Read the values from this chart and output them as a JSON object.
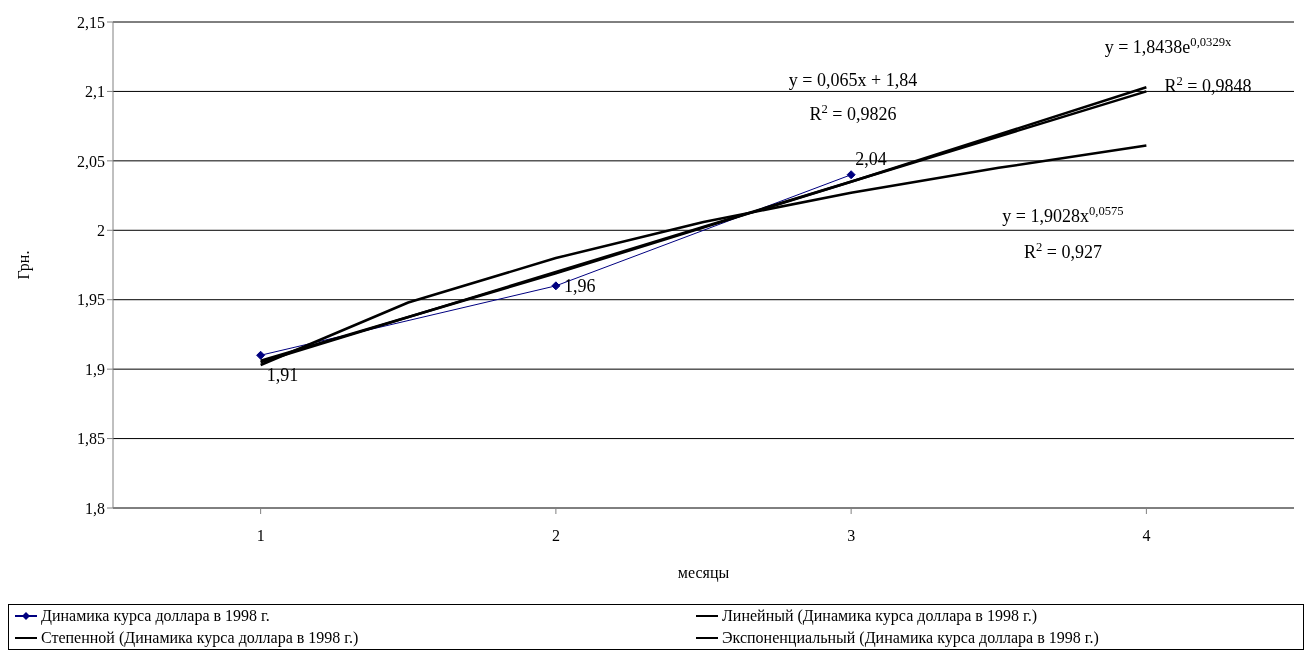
{
  "chart_data": {
    "type": "line",
    "xlabel": "месяцы",
    "ylabel": "Грн.",
    "xlim": [
      0.5,
      4.5
    ],
    "xticks": [
      1,
      2,
      3,
      4
    ],
    "ylim": [
      1.8,
      2.15
    ],
    "yticks": [
      {
        "value": 1.8,
        "label": "1,8"
      },
      {
        "value": 1.85,
        "label": "1,85"
      },
      {
        "value": 1.9,
        "label": "1,9"
      },
      {
        "value": 1.95,
        "label": "1,95"
      },
      {
        "value": 2,
        "label": "2"
      },
      {
        "value": 2.05,
        "label": "2,05"
      },
      {
        "value": 2.1,
        "label": "2,1"
      },
      {
        "value": 2.15,
        "label": "2,15"
      }
    ],
    "grid": "y",
    "legend": "bottom",
    "line_style": "solid",
    "series": [
      {
        "name": "Динамика курса доллара в 1998 г.",
        "color": "#000080",
        "marker": "diamond",
        "x": [
          1,
          2,
          3
        ],
        "values": [
          1.91,
          1.96,
          2.04
        ],
        "value_labels": [
          "1,91",
          "1,96",
          "2,04"
        ]
      },
      {
        "name": "Линейный (Динамика курса доллара в 1998 г.)",
        "color": "#000000",
        "marker": "none",
        "x": [
          1,
          4
        ],
        "values": [
          1.905,
          2.1
        ]
      },
      {
        "name": "Степенной (Динамика курса доллара в 1998 г.)",
        "color": "#000000",
        "marker": "none",
        "x": [
          1,
          1.5,
          2,
          2.5,
          3,
          3.5,
          4
        ],
        "values": [
          1.903,
          1.948,
          1.98,
          2.006,
          2.027,
          2.045,
          2.061
        ]
      },
      {
        "name": "Экспоненциальный (Динамика курса доллара в 1998 г.)",
        "color": "#000000",
        "marker": "none",
        "x": [
          1,
          2,
          3,
          4
        ],
        "values": [
          1.906,
          1.969,
          2.035,
          2.103
        ]
      }
    ],
    "annotations": [
      "y = 0,065x + 1,84",
      "R$^{2}$ = 0,9826",
      "y = 1,8438e$^{0,0329x}$",
      "R$^{2}$ = 0,9848",
      "y = 1,9028x$^{0,0575}$",
      "R$^{2}$ = 0,927"
    ]
  }
}
